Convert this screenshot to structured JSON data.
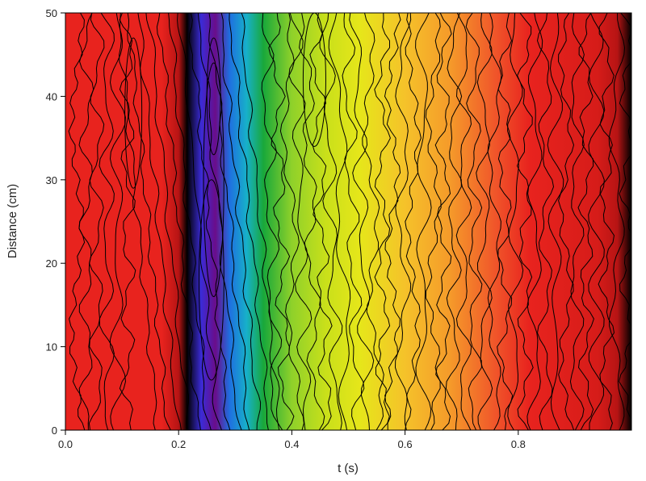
{
  "chart_data": {
    "type": "heatmap",
    "title": "",
    "xlabel": "t (s)",
    "ylabel": "Distance (cm)",
    "xlim": [
      0.0,
      1.0
    ],
    "ylim": [
      0,
      50
    ],
    "x_ticks": [
      0.0,
      0.2,
      0.4,
      0.6,
      0.8
    ],
    "x_tick_labels": [
      "0.0",
      "0.2",
      "0.4",
      "0.6",
      "0.8"
    ],
    "y_ticks": [
      0,
      10,
      20,
      30,
      40,
      50
    ],
    "y_tick_labels": [
      "0",
      "10",
      "20",
      "30",
      "40",
      "50"
    ],
    "grid": false,
    "legend": "none",
    "colormap": [
      "#6a0d8a",
      "#3b2bd6",
      "#1f6fe0",
      "#17b0c9",
      "#19a83a",
      "#8fd12a",
      "#e6e61a",
      "#f5c22a",
      "#f59a2a",
      "#f0552a",
      "#e8231e",
      "#b71414",
      "#000000"
    ],
    "contour_color": "#000000"
  }
}
